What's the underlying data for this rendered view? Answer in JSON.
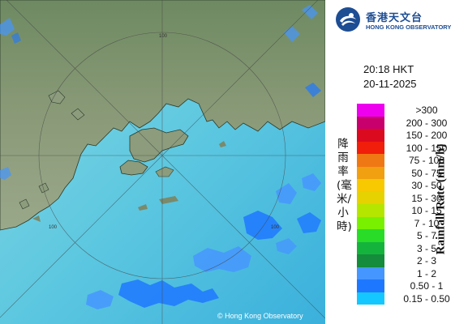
{
  "logo": {
    "name_chinese": "香港天文台",
    "name_english": "HONG KONG OBSERVATORY"
  },
  "timestamp": {
    "time": "20:18 HKT",
    "date": "20-11-2025"
  },
  "legend": {
    "unit_chinese": "降雨率(毫米/小時)",
    "unit_english": "Rainfall Rate (mm/h)",
    "items": [
      {
        "label": ">300",
        "color": "#ee00ee"
      },
      {
        "label": "200 - 300",
        "color": "#c8006e"
      },
      {
        "label": "150 - 200",
        "color": "#dc0a1e"
      },
      {
        "label": "100 - 150",
        "color": "#f01e0a"
      },
      {
        "label": "75 - 100",
        "color": "#f07814"
      },
      {
        "label": "50 - 75",
        "color": "#f0a010"
      },
      {
        "label": "30 - 50",
        "color": "#f8c800"
      },
      {
        "label": "15 - 30",
        "color": "#e6d200"
      },
      {
        "label": "10 - 15",
        "color": "#b4e600"
      },
      {
        "label": "7 - 10",
        "color": "#78f000"
      },
      {
        "label": "5 - 7",
        "color": "#28dc28"
      },
      {
        "label": "3 - 5",
        "color": "#14b43c"
      },
      {
        "label": "2 - 3",
        "color": "#148c3c"
      },
      {
        "label": "1 - 2",
        "color": "#4696ff"
      },
      {
        "label": "0.50 - 1",
        "color": "#1e78ff"
      },
      {
        "label": "0.15 - 0.50",
        "color": "#14c8ff"
      }
    ]
  },
  "map": {
    "range_ring_labels": [
      "100",
      "100",
      "100"
    ],
    "copyright": "© Hong Kong Observatory"
  }
}
